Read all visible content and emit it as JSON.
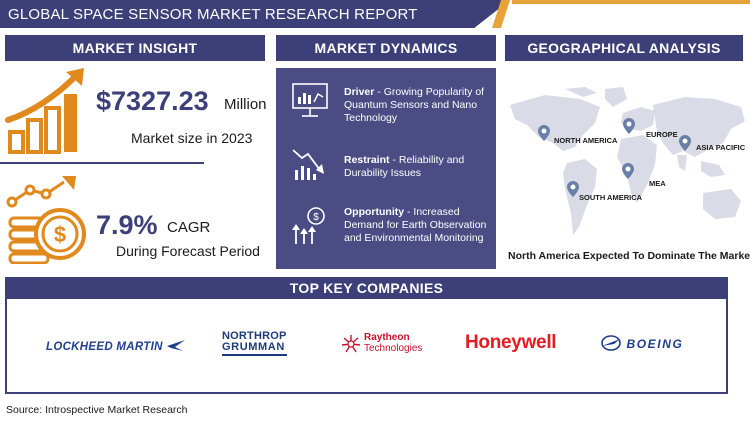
{
  "banner": {
    "title": "GLOBAL SPACE SENSOR MARKET RESEARCH REPORT"
  },
  "sections": {
    "insight": "MARKET INSIGHT",
    "dynamics": "MARKET DYNAMICS",
    "geo": "GEOGRAPHICAL ANALYSIS"
  },
  "insight": {
    "market_value": "$7327.23",
    "market_unit": "Million",
    "market_caption": "Market size in 2023",
    "cagr_value": "7.9%",
    "cagr_unit": "CAGR",
    "cagr_caption": "During Forecast Period"
  },
  "dynamics": [
    {
      "label": "Driver",
      "text": "Growing Popularity of Quantum Sensors and Nano Technology",
      "icon": "analytics-board-icon"
    },
    {
      "label": "Restraint",
      "text": "Reliability and Durability Issues",
      "icon": "declining-chart-icon"
    },
    {
      "label": "Opportunity",
      "text": "Increased Demand for Earth Observation and Environmental Monitoring",
      "icon": "growth-coin-icon"
    }
  ],
  "geo": {
    "regions": [
      "NORTH AMERICA",
      "EUROPE",
      "ASIA PACIFIC",
      "MEA",
      "SOUTH AMERICA"
    ],
    "caption": "North America Expected To Dominate The Market"
  },
  "companies": {
    "title": "TOP KEY COMPANIES",
    "list": [
      {
        "name": "LOCKHEED MARTIN"
      },
      {
        "name": "NORTHROP",
        "line2": "GRUMMAN"
      },
      {
        "name": "Raytheon",
        "line2": "Technologies"
      },
      {
        "name": "Honeywell"
      },
      {
        "name": "BOEING"
      }
    ]
  },
  "colors": {
    "navy": "#3d3f78",
    "panel": "#4a4c83",
    "orange": "#e08a1e",
    "accent": "#e8a23a",
    "lockheed": "#1f3f8f",
    "raytheon": "#c8102e",
    "honeywell": "#e31b23",
    "boeing": "#1d3f8a"
  },
  "source": "Source: Introspective Market Research"
}
